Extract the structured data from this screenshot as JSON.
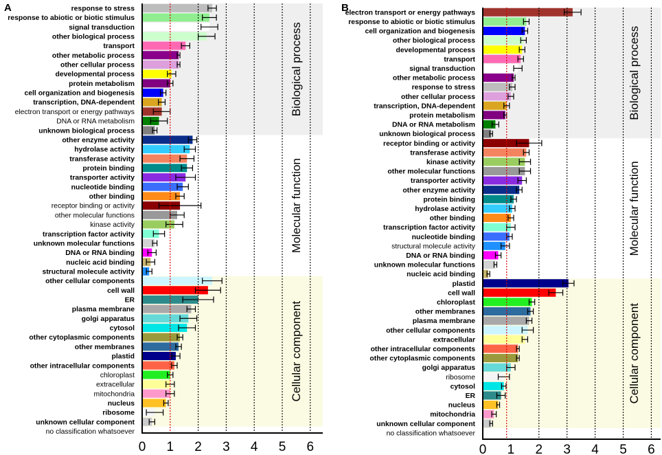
{
  "chart_data": [
    {
      "panel": "A",
      "type": "bar",
      "orientation": "horizontal",
      "xlim": [
        0,
        6
      ],
      "xticks": [
        "0",
        "1",
        "2",
        "3",
        "4",
        "5",
        "6"
      ],
      "reference_line": 1,
      "sections": [
        "Biological process",
        "Molecular function",
        "Cellular component"
      ],
      "bars": [
        {
          "label": "response to stress",
          "value": 2.5,
          "err": 0.15,
          "color": "#bdbdbd",
          "bold": true,
          "section": 0
        },
        {
          "label": "response to abiotic or biotic stimulus",
          "value": 2.4,
          "err": 0.25,
          "color": "#90ee90",
          "bold": true,
          "section": 0
        },
        {
          "label": "signal transduction",
          "value": 2.4,
          "err": 0.3,
          "color": "#ffffff",
          "bold": true,
          "section": 0
        },
        {
          "label": "other biological process",
          "value": 2.3,
          "err": 0.3,
          "color": "#ccffcc",
          "bold": true,
          "section": 0
        },
        {
          "label": "transport",
          "value": 1.55,
          "err": 0.15,
          "color": "#ff69b4",
          "bold": true,
          "section": 0
        },
        {
          "label": "other metabolic process",
          "value": 1.3,
          "err": 0.05,
          "color": "#8b008b",
          "bold": true,
          "section": 0
        },
        {
          "label": "other cellular process",
          "value": 1.3,
          "err": 0.05,
          "color": "#dda0dd",
          "bold": true,
          "section": 0
        },
        {
          "label": "developmental process",
          "value": 1.05,
          "err": 0.15,
          "color": "#ffff00",
          "bold": true,
          "section": 0
        },
        {
          "label": "protein metabolism",
          "value": 1.0,
          "err": 0.1,
          "color": "#800080",
          "bold": true,
          "section": 0
        },
        {
          "label": "cell organization and biogenesis",
          "value": 0.75,
          "err": 0.1,
          "color": "#0000ff",
          "bold": true,
          "section": 0
        },
        {
          "label": "transcription, DNA-dependent",
          "value": 0.7,
          "err": 0.12,
          "color": "#daa520",
          "bold": true,
          "section": 0
        },
        {
          "label": "electron transport or energy pathways",
          "value": 0.7,
          "err": 0.3,
          "color": "#a0342d",
          "bold": false,
          "section": 0
        },
        {
          "label": "DNA or RNA metabolism",
          "value": 0.6,
          "err": 0.3,
          "color": "#008000",
          "bold": false,
          "section": 0
        },
        {
          "label": "unknown biological process",
          "value": 0.45,
          "err": 0.08,
          "color": "#808080",
          "bold": true,
          "section": 0
        },
        {
          "label": "other enzyme activity",
          "value": 1.8,
          "err": 0.15,
          "color": "#0a2e8a",
          "bold": true,
          "section": 1
        },
        {
          "label": "hydrolase activity",
          "value": 1.7,
          "err": 0.2,
          "color": "#33ccff",
          "bold": true,
          "section": 1
        },
        {
          "label": "transferase activity",
          "value": 1.6,
          "err": 0.25,
          "color": "#f4845f",
          "bold": true,
          "section": 1
        },
        {
          "label": "protein binding",
          "value": 1.6,
          "err": 0.2,
          "color": "#008b8b",
          "bold": true,
          "section": 1
        },
        {
          "label": "transporter activity",
          "value": 1.55,
          "err": 0.35,
          "color": "#8a2be2",
          "bold": true,
          "section": 1
        },
        {
          "label": "nucleotide binding",
          "value": 1.45,
          "err": 0.2,
          "color": "#3a6eff",
          "bold": true,
          "section": 1
        },
        {
          "label": "other binding",
          "value": 1.35,
          "err": 0.15,
          "color": "#ff8c1a",
          "bold": true,
          "section": 1
        },
        {
          "label": "receptor binding or activity",
          "value": 1.35,
          "err": 0.75,
          "color": "#8b0000",
          "bold": false,
          "section": 1
        },
        {
          "label": "other molecular functions",
          "value": 1.25,
          "err": 0.25,
          "color": "#999999",
          "bold": false,
          "section": 1
        },
        {
          "label": "kinase activity",
          "value": 1.15,
          "err": 0.3,
          "color": "#9acd60",
          "bold": false,
          "section": 1
        },
        {
          "label": "transcription factor activity",
          "value": 0.6,
          "err": 0.2,
          "color": "#7fffd4",
          "bold": true,
          "section": 1
        },
        {
          "label": "unknown molecular functions",
          "value": 0.45,
          "err": 0.08,
          "color": "#d3d3d3",
          "bold": true,
          "section": 1
        },
        {
          "label": "DNA or RNA binding",
          "value": 0.35,
          "err": 0.15,
          "color": "#ff00ff",
          "bold": true,
          "section": 1
        },
        {
          "label": "nucleic acid binding",
          "value": 0.3,
          "err": 0.15,
          "color": "#c8b56e",
          "bold": true,
          "section": 1
        },
        {
          "label": "structural molecule activity",
          "value": 0.25,
          "err": 0.1,
          "color": "#1e90ff",
          "bold": true,
          "section": 1
        },
        {
          "label": "other cellular components",
          "value": 2.5,
          "err": 0.35,
          "color": "#ccf5ff",
          "bold": true,
          "section": 2
        },
        {
          "label": "cell wall",
          "value": 2.35,
          "err": 0.45,
          "color": "#ff0000",
          "bold": true,
          "section": 2
        },
        {
          "label": "ER",
          "value": 2.0,
          "err": 0.55,
          "color": "#2e8b8b",
          "bold": true,
          "section": 2
        },
        {
          "label": "plasma membrane",
          "value": 1.75,
          "err": 0.15,
          "color": "#a9a9a9",
          "bold": true,
          "section": 2
        },
        {
          "label": "golgi apparatus",
          "value": 1.65,
          "err": 0.3,
          "color": "#66d9d9",
          "bold": true,
          "section": 2
        },
        {
          "label": "cytosol",
          "value": 1.6,
          "err": 0.3,
          "color": "#00e5e5",
          "bold": true,
          "section": 2
        },
        {
          "label": "other cytoplasmic components",
          "value": 1.35,
          "err": 0.1,
          "color": "#9a9a3c",
          "bold": true,
          "section": 2
        },
        {
          "label": "other membranes",
          "value": 1.3,
          "err": 0.1,
          "color": "#2e6b9e",
          "bold": true,
          "section": 2
        },
        {
          "label": "plastid",
          "value": 1.2,
          "err": 0.15,
          "color": "#00008b",
          "bold": true,
          "section": 2
        },
        {
          "label": "other intracellular components",
          "value": 1.15,
          "err": 0.1,
          "color": "#ff6347",
          "bold": true,
          "section": 2
        },
        {
          "label": "chloroplast",
          "value": 1.0,
          "err": 0.1,
          "color": "#22ee22",
          "bold": false,
          "section": 2
        },
        {
          "label": "extracellular",
          "value": 1.0,
          "err": 0.15,
          "color": "#ffff99",
          "bold": false,
          "section": 2
        },
        {
          "label": "mitochondria",
          "value": 1.0,
          "err": 0.15,
          "color": "#ff99cc",
          "bold": false,
          "section": 2
        },
        {
          "label": "nucleus",
          "value": 0.85,
          "err": 0.08,
          "color": "#ffc125",
          "bold": true,
          "section": 2
        },
        {
          "label": "ribosome",
          "value": 0.45,
          "err": 0.3,
          "color": "#f5f5f5",
          "bold": true,
          "section": 2
        },
        {
          "label": "unknown cellular component",
          "value": 0.35,
          "err": 0.1,
          "color": "#cccccc",
          "bold": true,
          "section": 2
        },
        {
          "label": "no classification whatsoever",
          "value": 0,
          "err": 0,
          "color": "#ffffff",
          "bold": false,
          "section": -1
        }
      ]
    },
    {
      "panel": "B",
      "type": "bar",
      "orientation": "horizontal",
      "xlim": [
        0,
        6
      ],
      "xticks": [
        "0",
        "1",
        "2",
        "3",
        "4",
        "5",
        "6"
      ],
      "reference_line": 0.85,
      "sections": [
        "Biological process",
        "Molecular function",
        "Cellular component"
      ],
      "bars": [
        {
          "label": "electron transport or energy pathways",
          "value": 3.2,
          "err": 0.3,
          "color": "#a0342d",
          "bold": true,
          "section": 0
        },
        {
          "label": "response to abiotic or biotic stimulus",
          "value": 1.55,
          "err": 0.1,
          "color": "#90ee90",
          "bold": true,
          "section": 0
        },
        {
          "label": "cell organization and biogenesis",
          "value": 1.5,
          "err": 0.1,
          "color": "#0000ff",
          "bold": true,
          "section": 0
        },
        {
          "label": "other biological process",
          "value": 1.45,
          "err": 0.1,
          "color": "#ccffcc",
          "bold": true,
          "section": 0
        },
        {
          "label": "developmental process",
          "value": 1.4,
          "err": 0.1,
          "color": "#ffff00",
          "bold": true,
          "section": 0
        },
        {
          "label": "transport",
          "value": 1.35,
          "err": 0.1,
          "color": "#ff69b4",
          "bold": true,
          "section": 0
        },
        {
          "label": "signal transduction",
          "value": 1.25,
          "err": 0.15,
          "color": "#ffffff",
          "bold": true,
          "section": 0
        },
        {
          "label": "other metabolic process",
          "value": 1.1,
          "err": 0.05,
          "color": "#8b008b",
          "bold": true,
          "section": 0
        },
        {
          "label": "response to stress",
          "value": 1.05,
          "err": 0.1,
          "color": "#bdbdbd",
          "bold": true,
          "section": 0
        },
        {
          "label": "other cellular process",
          "value": 1.0,
          "err": 0.1,
          "color": "#dda0dd",
          "bold": true,
          "section": 0
        },
        {
          "label": "transcription, DNA-dependent",
          "value": 0.85,
          "err": 0.1,
          "color": "#daa520",
          "bold": true,
          "section": 0
        },
        {
          "label": "protein metabolism",
          "value": 0.8,
          "err": 0.05,
          "color": "#800080",
          "bold": true,
          "section": 0
        },
        {
          "label": "DNA or RNA metabolism",
          "value": 0.45,
          "err": 0.12,
          "color": "#008000",
          "bold": true,
          "section": 0
        },
        {
          "label": "unknown biological process",
          "value": 0.3,
          "err": 0.05,
          "color": "#808080",
          "bold": true,
          "section": 0
        },
        {
          "label": "receptor binding or activity",
          "value": 1.65,
          "err": 0.45,
          "color": "#8b0000",
          "bold": true,
          "section": 1
        },
        {
          "label": "transferase activity",
          "value": 1.55,
          "err": 0.1,
          "color": "#f4845f",
          "bold": true,
          "section": 1
        },
        {
          "label": "kinase activity",
          "value": 1.5,
          "err": 0.2,
          "color": "#9acd60",
          "bold": true,
          "section": 1
        },
        {
          "label": "other molecular functions",
          "value": 1.5,
          "err": 0.2,
          "color": "#999999",
          "bold": true,
          "section": 1
        },
        {
          "label": "transporter activity",
          "value": 1.4,
          "err": 0.15,
          "color": "#8a2be2",
          "bold": true,
          "section": 1
        },
        {
          "label": "other enzyme activity",
          "value": 1.3,
          "err": 0.1,
          "color": "#0a2e8a",
          "bold": true,
          "section": 1
        },
        {
          "label": "protein binding",
          "value": 1.1,
          "err": 0.1,
          "color": "#008b8b",
          "bold": true,
          "section": 1
        },
        {
          "label": "hydrolase activity",
          "value": 1.05,
          "err": 0.1,
          "color": "#33ccff",
          "bold": true,
          "section": 1
        },
        {
          "label": "other binding",
          "value": 1.0,
          "err": 0.1,
          "color": "#ff8c1a",
          "bold": true,
          "section": 1
        },
        {
          "label": "transcription factor activity",
          "value": 1.0,
          "err": 0.15,
          "color": "#7fffd4",
          "bold": true,
          "section": 1
        },
        {
          "label": "nucleotide binding",
          "value": 0.95,
          "err": 0.1,
          "color": "#3a6eff",
          "bold": true,
          "section": 1
        },
        {
          "label": "structural molecule activity",
          "value": 0.8,
          "err": 0.15,
          "color": "#1e90ff",
          "bold": false,
          "section": 1
        },
        {
          "label": "DNA or RNA binding",
          "value": 0.55,
          "err": 0.1,
          "color": "#ff00ff",
          "bold": true,
          "section": 1
        },
        {
          "label": "unknown molecular functions",
          "value": 0.45,
          "err": 0.05,
          "color": "#d3d3d3",
          "bold": true,
          "section": 1
        },
        {
          "label": "nucleic acid binding",
          "value": 0.2,
          "err": 0.05,
          "color": "#c8b56e",
          "bold": true,
          "section": 1
        },
        {
          "label": "plastid",
          "value": 3.05,
          "err": 0.2,
          "color": "#00008b",
          "bold": true,
          "section": 2
        },
        {
          "label": "cell wall",
          "value": 2.6,
          "err": 0.25,
          "color": "#ff0000",
          "bold": true,
          "section": 2
        },
        {
          "label": "chloroplast",
          "value": 1.75,
          "err": 0.1,
          "color": "#22ee22",
          "bold": true,
          "section": 2
        },
        {
          "label": "other membranes",
          "value": 1.7,
          "err": 0.1,
          "color": "#2e6b9e",
          "bold": true,
          "section": 2
        },
        {
          "label": "plasma membrane",
          "value": 1.65,
          "err": 0.1,
          "color": "#a9a9a9",
          "bold": true,
          "section": 2
        },
        {
          "label": "other cellular components",
          "value": 1.6,
          "err": 0.2,
          "color": "#ccf5ff",
          "bold": true,
          "section": 2
        },
        {
          "label": "extracellular",
          "value": 1.5,
          "err": 0.1,
          "color": "#ffff99",
          "bold": true,
          "section": 2
        },
        {
          "label": "other intracellular components",
          "value": 1.25,
          "err": 0.05,
          "color": "#ff6347",
          "bold": true,
          "section": 2
        },
        {
          "label": "other cytoplasmic components",
          "value": 1.25,
          "err": 0.05,
          "color": "#9a9a3c",
          "bold": true,
          "section": 2
        },
        {
          "label": "golgi apparatus",
          "value": 1.0,
          "err": 0.15,
          "color": "#66d9d9",
          "bold": true,
          "section": 2
        },
        {
          "label": "ribosome",
          "value": 0.75,
          "err": 0.2,
          "color": "#f5f5f5",
          "bold": false,
          "section": 2
        },
        {
          "label": "cytosol",
          "value": 0.75,
          "err": 0.08,
          "color": "#00e5e5",
          "bold": true,
          "section": 2
        },
        {
          "label": "ER",
          "value": 0.65,
          "err": 0.15,
          "color": "#2e8b8b",
          "bold": true,
          "section": 2
        },
        {
          "label": "nucleus",
          "value": 0.55,
          "err": 0.05,
          "color": "#ffc125",
          "bold": true,
          "section": 2
        },
        {
          "label": "mitochondria",
          "value": 0.4,
          "err": 0.08,
          "color": "#ff99cc",
          "bold": true,
          "section": 2
        },
        {
          "label": "unknown cellular component",
          "value": 0.3,
          "err": 0.05,
          "color": "#cccccc",
          "bold": true,
          "section": 2
        },
        {
          "label": "no classification whatsoever",
          "value": 0,
          "err": 0,
          "color": "#ffffff",
          "bold": false,
          "section": -1
        }
      ]
    }
  ],
  "colors": {
    "section_bg": [
      "#efefef",
      "#ffffff",
      "#fbfbe3"
    ],
    "reference_line": "#dd0000",
    "gridline": "#000000"
  }
}
